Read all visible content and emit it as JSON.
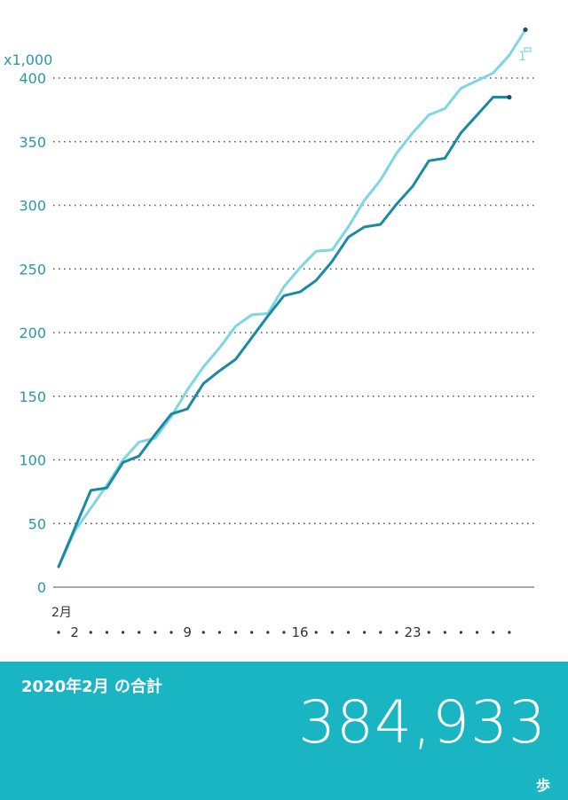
{
  "chart_data": {
    "type": "line",
    "y_unit_label": "x1,000",
    "x_month_label": "2月",
    "x_tick_labels": [
      {
        "day": 2,
        "label": "2"
      },
      {
        "day": 9,
        "label": "9"
      },
      {
        "day": 16,
        "label": "16"
      },
      {
        "day": 23,
        "label": "23"
      }
    ],
    "ylim": [
      0,
      400
    ],
    "yticks": [
      0,
      50,
      100,
      150,
      200,
      250,
      300,
      350,
      400
    ],
    "xlim": [
      1,
      30
    ],
    "grid": true,
    "series": [
      {
        "color": "#1a8aa3",
        "x": [
          1,
          2,
          3,
          4,
          5,
          6,
          7,
          8,
          9,
          10,
          11,
          12,
          13,
          14,
          15,
          16,
          17,
          18,
          19,
          20,
          21,
          22,
          23,
          24,
          25,
          26,
          27,
          28,
          29
        ],
        "values": [
          16,
          46,
          76,
          78,
          98,
          103,
          120,
          136,
          140,
          160,
          170,
          179,
          196,
          213,
          229,
          232,
          241,
          256,
          275,
          283,
          285,
          301,
          315,
          335,
          337,
          357,
          371,
          385,
          384.933
        ]
      },
      {
        "color": "#7ed6e3",
        "x": [
          1,
          2,
          3,
          4,
          5,
          6,
          7,
          8,
          9,
          10,
          11,
          12,
          13,
          14,
          15,
          16,
          17,
          18,
          19,
          20,
          21,
          22,
          23,
          24,
          25,
          26,
          27,
          28,
          29,
          30
        ],
        "values": [
          16,
          44,
          62,
          80,
          100,
          114,
          117,
          134,
          155,
          173,
          188,
          205,
          214,
          215,
          236,
          251,
          264,
          265,
          283,
          304,
          320,
          341,
          357,
          371,
          376,
          392,
          398,
          404,
          418,
          438
        ]
      }
    ],
    "end_label": "1"
  },
  "footer": {
    "title": "2020年2月 の合計",
    "value": "384,933",
    "unit": "歩"
  },
  "colors": {
    "accent": "#1ab5c2",
    "series_dark": "#1a8aa3",
    "series_light": "#7ed6e3",
    "axis_text": "#2a98aa"
  }
}
